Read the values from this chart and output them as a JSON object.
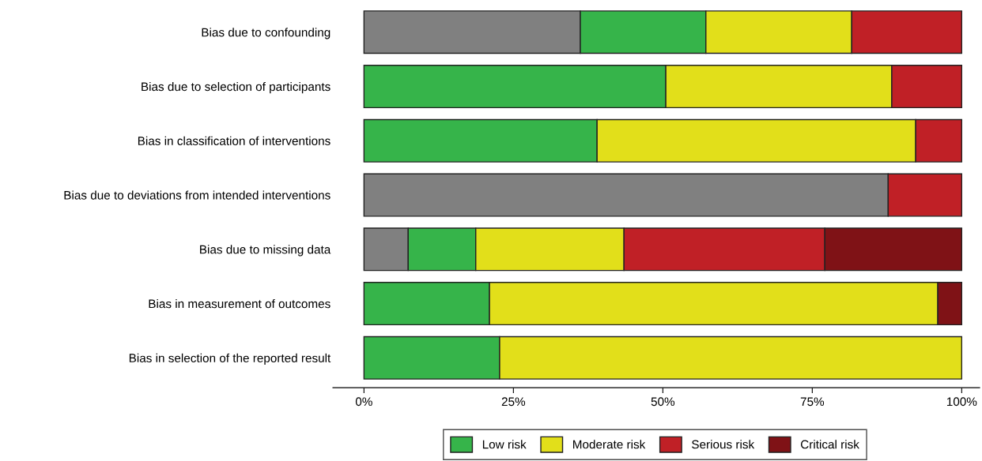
{
  "chart_data": {
    "type": "bar",
    "orientation": "horizontal",
    "stacked": true,
    "categories": [
      "Bias due to confounding",
      "Bias due to selection of participants",
      "Bias in classification of interventions",
      "Bias due to deviations from intended interventions",
      "Bias due to missing data",
      "Bias in measurement of outcomes",
      "Bias in selection of the reported result"
    ],
    "series": [
      {
        "color": "#808080",
        "values": [
          36.2,
          null,
          null,
          87.7,
          7.4,
          null,
          null
        ]
      },
      {
        "name": "Low risk",
        "color": "#36b44a",
        "values": [
          21.0,
          50.5,
          39.0,
          null,
          11.3,
          21.0,
          22.7
        ]
      },
      {
        "name": "Moderate risk",
        "color": "#e2df1a",
        "values": [
          24.4,
          37.8,
          53.3,
          null,
          24.8,
          75.0,
          77.3
        ]
      },
      {
        "name": "Serious risk",
        "color": "#c02026",
        "values": [
          18.4,
          11.7,
          7.7,
          12.3,
          33.6,
          null,
          null
        ]
      },
      {
        "name": "Critical risk",
        "color": "#7f1216",
        "values": [
          null,
          null,
          null,
          null,
          22.9,
          4.0,
          null
        ]
      }
    ],
    "xlim": [
      -5.2,
      103
    ],
    "xticks": [
      {
        "value": 0,
        "label": "0%"
      },
      {
        "value": 25,
        "label": "25%"
      },
      {
        "value": 50,
        "label": "50%"
      },
      {
        "value": 75,
        "label": "75%"
      },
      {
        "value": 100,
        "label": "100%"
      }
    ],
    "grid": false,
    "legend": "bottom"
  }
}
